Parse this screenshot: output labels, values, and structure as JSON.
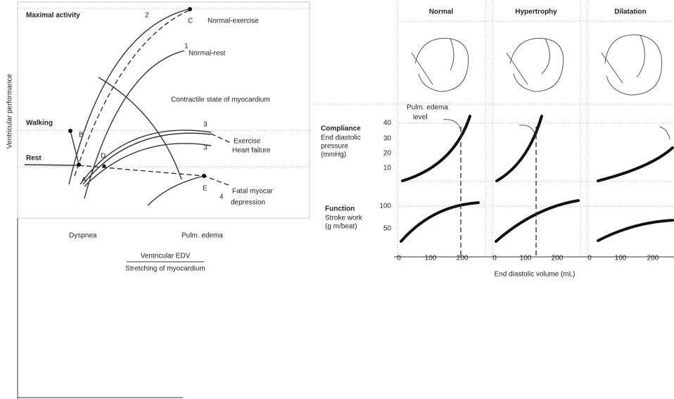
{
  "left_figure": {
    "y_label": "Ventricular performance",
    "maximal_activity": "Maximal activity",
    "walking": "Walking",
    "rest": "Rest",
    "curve_numbers": [
      "2",
      "1",
      "3",
      "3'",
      "4"
    ],
    "points": [
      "A",
      "B",
      "C",
      "D",
      "E"
    ],
    "curve_labels": [
      "Normal-exercise",
      "Normal-rest",
      "Contractile state of myocardium",
      "Exercise",
      "Heart failure",
      "Fatal myocar",
      "depression"
    ],
    "x_markers": [
      "Dyspnea",
      "Pulm. edema"
    ],
    "x_label": "Ventricular EDV",
    "x_sublabel": "Stretching of myocardium"
  },
  "right_figure": {
    "columns": [
      "Normal",
      "Hypertrophy",
      "Dilatation"
    ],
    "compliance": {
      "title": "Compliance",
      "lines": [
        "End diastolic",
        "pressure",
        "(mmHg)"
      ],
      "ticks": [
        40,
        30,
        20,
        10
      ],
      "annotation": [
        "Pulm. edema",
        "level"
      ]
    },
    "function": {
      "title": "Function",
      "lines": [
        "Stroke work",
        "(g m/beat)"
      ],
      "ticks": [
        100,
        50
      ]
    },
    "x_ticks": [
      0,
      100,
      200
    ],
    "x_label": "End diastolic volume (mL)"
  }
}
